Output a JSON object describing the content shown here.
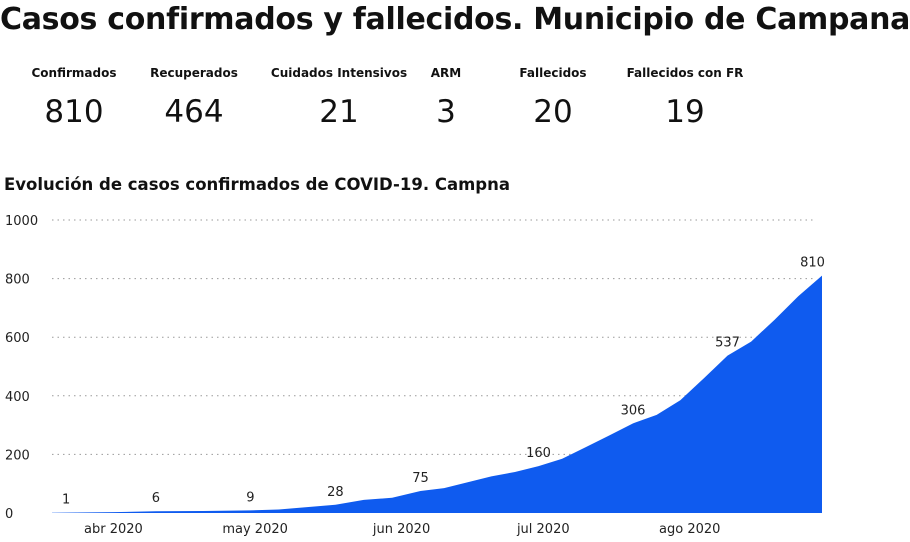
{
  "header": {
    "title": "Casos confirmados y fallecidos. Municipio de Campana."
  },
  "kpis": [
    {
      "label": "Confirmados",
      "value": "810"
    },
    {
      "label": "Recuperados",
      "value": "464"
    },
    {
      "label": "Cuidados Intensivos",
      "value": "21"
    },
    {
      "label": "ARM",
      "value": "3"
    },
    {
      "label": "Fallecidos",
      "value": "20"
    },
    {
      "label": "Fallecidos con FR",
      "value": "19"
    }
  ],
  "chart_title": "Evolución de casos confirmados de COVID-19. Campna",
  "colors": {
    "fill": "#0f5bef",
    "grid": "#9a9a9a",
    "text": "#222222"
  },
  "chart_data": {
    "type": "area",
    "title": "Evolución de casos confirmados de COVID-19. Campna",
    "xlabel": "",
    "ylabel": "",
    "ylim": [
      0,
      1000
    ],
    "yticks": [
      0,
      200,
      400,
      600,
      800,
      1000
    ],
    "ytick_labels": [
      "0",
      "200",
      "400",
      "600",
      "800",
      "1000"
    ],
    "grid": "horizontal dotted",
    "x_tick_labels": [
      "abr 2020",
      "may 2020",
      "jun 2020",
      "jul 2020",
      "ago 2020"
    ],
    "x_tick_dates": [
      "2020-04-01",
      "2020-05-01",
      "2020-06-01",
      "2020-07-01",
      "2020-08-01"
    ],
    "xlim": [
      "2020-03-19",
      "2020-08-29"
    ],
    "series": [
      {
        "x": [
          "2020-03-19",
          "2020-04-01",
          "2020-04-10",
          "2020-04-20",
          "2020-04-30",
          "2020-05-06",
          "2020-05-12",
          "2020-05-18",
          "2020-05-24",
          "2020-05-30",
          "2020-06-05",
          "2020-06-10",
          "2020-06-15",
          "2020-06-20",
          "2020-06-25",
          "2020-06-30",
          "2020-07-05",
          "2020-07-10",
          "2020-07-15",
          "2020-07-20",
          "2020-07-25",
          "2020-07-30",
          "2020-08-04",
          "2020-08-09",
          "2020-08-14",
          "2020-08-19",
          "2020-08-24",
          "2020-08-29"
        ],
        "values": [
          1,
          3,
          6,
          7,
          9,
          12,
          20,
          28,
          45,
          52,
          75,
          85,
          105,
          125,
          140,
          160,
          185,
          225,
          265,
          306,
          335,
          385,
          460,
          537,
          585,
          660,
          740,
          810
        ]
      }
    ],
    "data_labels": [
      {
        "x": "2020-03-22",
        "value": 1,
        "label": "1"
      },
      {
        "x": "2020-04-10",
        "value": 6,
        "label": "6"
      },
      {
        "x": "2020-04-30",
        "value": 9,
        "label": "9"
      },
      {
        "x": "2020-05-18",
        "value": 28,
        "label": "28"
      },
      {
        "x": "2020-06-05",
        "value": 75,
        "label": "75"
      },
      {
        "x": "2020-06-30",
        "value": 160,
        "label": "160"
      },
      {
        "x": "2020-07-20",
        "value": 306,
        "label": "306"
      },
      {
        "x": "2020-08-09",
        "value": 537,
        "label": "537"
      },
      {
        "x": "2020-08-27",
        "value": 810,
        "label": "810"
      }
    ]
  }
}
